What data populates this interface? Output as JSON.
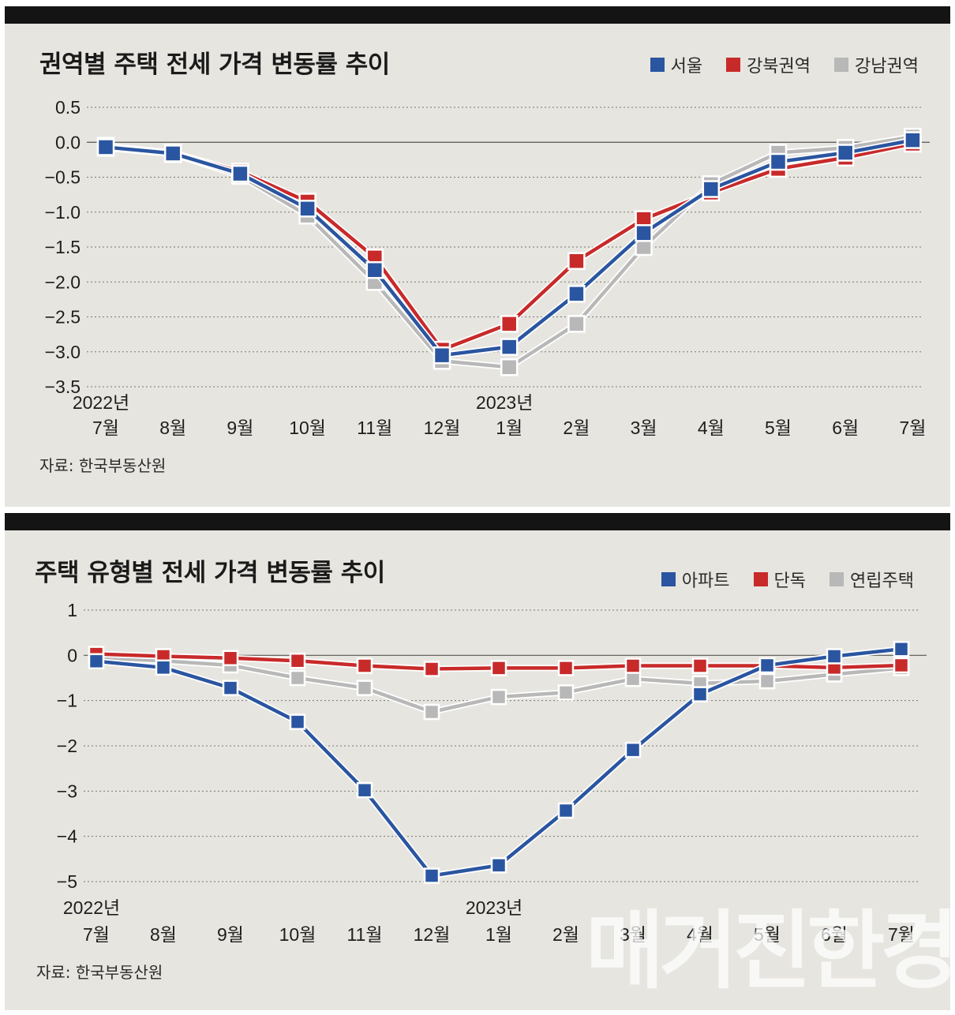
{
  "colors": {
    "blue": "#2a55a0",
    "red": "#c82a2a",
    "gray": "#b8b8b8",
    "panel_bg": "#e7e5df"
  },
  "watermark": "매거진한경",
  "chart_data": [
    {
      "type": "line",
      "title": "권역별 주택 전세 가격 변동률 추이",
      "source": "자료: 한국부동산원",
      "categories": [
        "7월",
        "8월",
        "9월",
        "10월",
        "11월",
        "12월",
        "1월",
        "2월",
        "3월",
        "4월",
        "5월",
        "6월",
        "7월"
      ],
      "year_labels": [
        {
          "index": 0,
          "text": "2022년"
        },
        {
          "index": 6,
          "text": "2023년"
        }
      ],
      "yticks": [
        "0.5",
        "0.0",
        "−0.5",
        "−1.0",
        "−1.5",
        "−2.0",
        "−2.5",
        "−3.0",
        "−3.5"
      ],
      "ytick_values": [
        0.5,
        0,
        -0.5,
        -1.0,
        -1.5,
        -2.0,
        -2.5,
        -3.0,
        -3.5
      ],
      "ylim": [
        -3.5,
        0.5
      ],
      "legend": [
        "서울",
        "강북권역",
        "강남권역"
      ],
      "series": [
        {
          "name": "강남권역",
          "color": "gray",
          "values": [
            -0.08,
            -0.17,
            -0.48,
            -1.05,
            -2.0,
            -3.13,
            -3.22,
            -2.6,
            -1.5,
            -0.6,
            -0.15,
            -0.08,
            0.08
          ]
        },
        {
          "name": "강북권역",
          "color": "red",
          "values": [
            -0.05,
            -0.15,
            -0.42,
            -0.85,
            -1.65,
            -2.97,
            -2.6,
            -1.7,
            -1.1,
            -0.72,
            -0.38,
            -0.22,
            -0.02
          ]
        },
        {
          "name": "서울",
          "color": "blue",
          "values": [
            -0.07,
            -0.16,
            -0.45,
            -0.95,
            -1.83,
            -3.05,
            -2.93,
            -2.17,
            -1.3,
            -0.67,
            -0.28,
            -0.15,
            0.03
          ]
        }
      ]
    },
    {
      "type": "line",
      "title": "주택 유형별 전세 가격 변동률 추이",
      "source": "자료: 한국부동산원",
      "categories": [
        "7월",
        "8월",
        "9월",
        "10월",
        "11월",
        "12월",
        "1월",
        "2월",
        "3월",
        "4월",
        "5월",
        "6월",
        "7월"
      ],
      "year_labels": [
        {
          "index": 0,
          "text": "2022년"
        },
        {
          "index": 6,
          "text": "2023년"
        }
      ],
      "yticks": [
        "1",
        "0",
        "−1",
        "−2",
        "−3",
        "−4",
        "−5"
      ],
      "ytick_values": [
        1,
        0,
        -1,
        -2,
        -3,
        -4,
        -5
      ],
      "ylim": [
        -5,
        1
      ],
      "legend": [
        "아파트",
        "단독",
        "연립주택"
      ],
      "series": [
        {
          "name": "연립주택",
          "color": "gray",
          "values": [
            -0.05,
            -0.12,
            -0.22,
            -0.5,
            -0.72,
            -1.25,
            -0.92,
            -0.82,
            -0.52,
            -0.62,
            -0.57,
            -0.42,
            -0.28
          ]
        },
        {
          "name": "단독",
          "color": "red",
          "values": [
            0.03,
            -0.02,
            -0.06,
            -0.12,
            -0.23,
            -0.3,
            -0.28,
            -0.28,
            -0.23,
            -0.23,
            -0.23,
            -0.27,
            -0.22
          ]
        },
        {
          "name": "아파트",
          "color": "blue",
          "values": [
            -0.13,
            -0.27,
            -0.72,
            -1.47,
            -2.98,
            -4.87,
            -4.64,
            -3.43,
            -2.09,
            -0.86,
            -0.22,
            -0.02,
            0.14
          ]
        }
      ]
    }
  ]
}
